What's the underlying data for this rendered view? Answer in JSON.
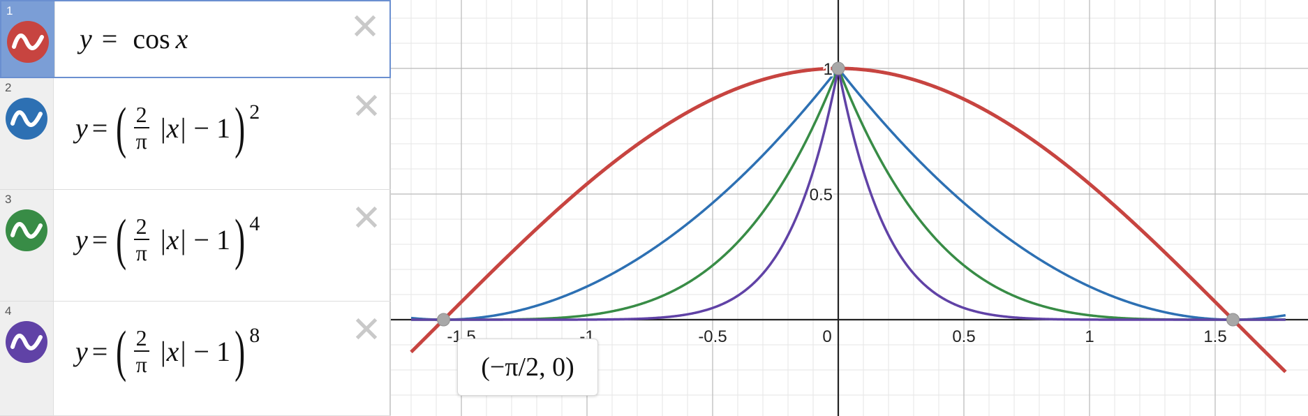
{
  "expressions": [
    {
      "index": "1",
      "color": "#c74440",
      "lhs": "y",
      "eq": "=",
      "rhs": "cos",
      "var": "x"
    },
    {
      "index": "2",
      "color": "#2d70b3",
      "lhs": "y",
      "eq": "=",
      "num": "2",
      "den": "π",
      "abs": "|x|",
      "minus": "−",
      "one": "1",
      "exp": "2"
    },
    {
      "index": "3",
      "color": "#388c46",
      "lhs": "y",
      "eq": "=",
      "num": "2",
      "den": "π",
      "abs": "|x|",
      "minus": "−",
      "one": "1",
      "exp": "4"
    },
    {
      "index": "4",
      "color": "#6042a6",
      "lhs": "y",
      "eq": "=",
      "num": "2",
      "den": "π",
      "abs": "|x|",
      "minus": "−",
      "one": "1",
      "exp": "8"
    }
  ],
  "close_symbol": "✕",
  "swatch_icon": "sine-wave-icon",
  "tooltip": {
    "text": "(−π/2, 0)"
  },
  "graph": {
    "x_range": [
      -1.7,
      1.78
    ],
    "y_range": [
      -0.38,
      1.27
    ],
    "x_ticks": [
      "-1.5",
      "-1",
      "-0.5",
      "0",
      "0.5",
      "1",
      "1.5"
    ],
    "y_ticks": [
      "0.5",
      "1"
    ],
    "points": [
      {
        "label": "(−π/2, 0)",
        "x": -1.5708,
        "y": 0
      },
      {
        "label": "(0, 1)",
        "x": 0,
        "y": 1
      },
      {
        "label": "(π/2, 0)",
        "x": 1.5708,
        "y": 0
      }
    ]
  },
  "chart_data": {
    "type": "line",
    "series": [
      {
        "name": "y = cos x",
        "color": "#c74440",
        "function": "cos(x)"
      },
      {
        "name": "y = (2/π |x| − 1)^2",
        "color": "#2d70b3",
        "function": "(2/pi*|x|-1)^2"
      },
      {
        "name": "y = (2/π |x| − 1)^4",
        "color": "#388c46",
        "function": "(2/pi*|x|-1)^4"
      },
      {
        "name": "y = (2/π |x| − 1)^8",
        "color": "#6042a6",
        "function": "(2/pi*|x|-1)^8"
      }
    ],
    "xlim": [
      -1.7,
      1.78
    ],
    "ylim": [
      -0.38,
      1.27
    ],
    "grid": true
  }
}
